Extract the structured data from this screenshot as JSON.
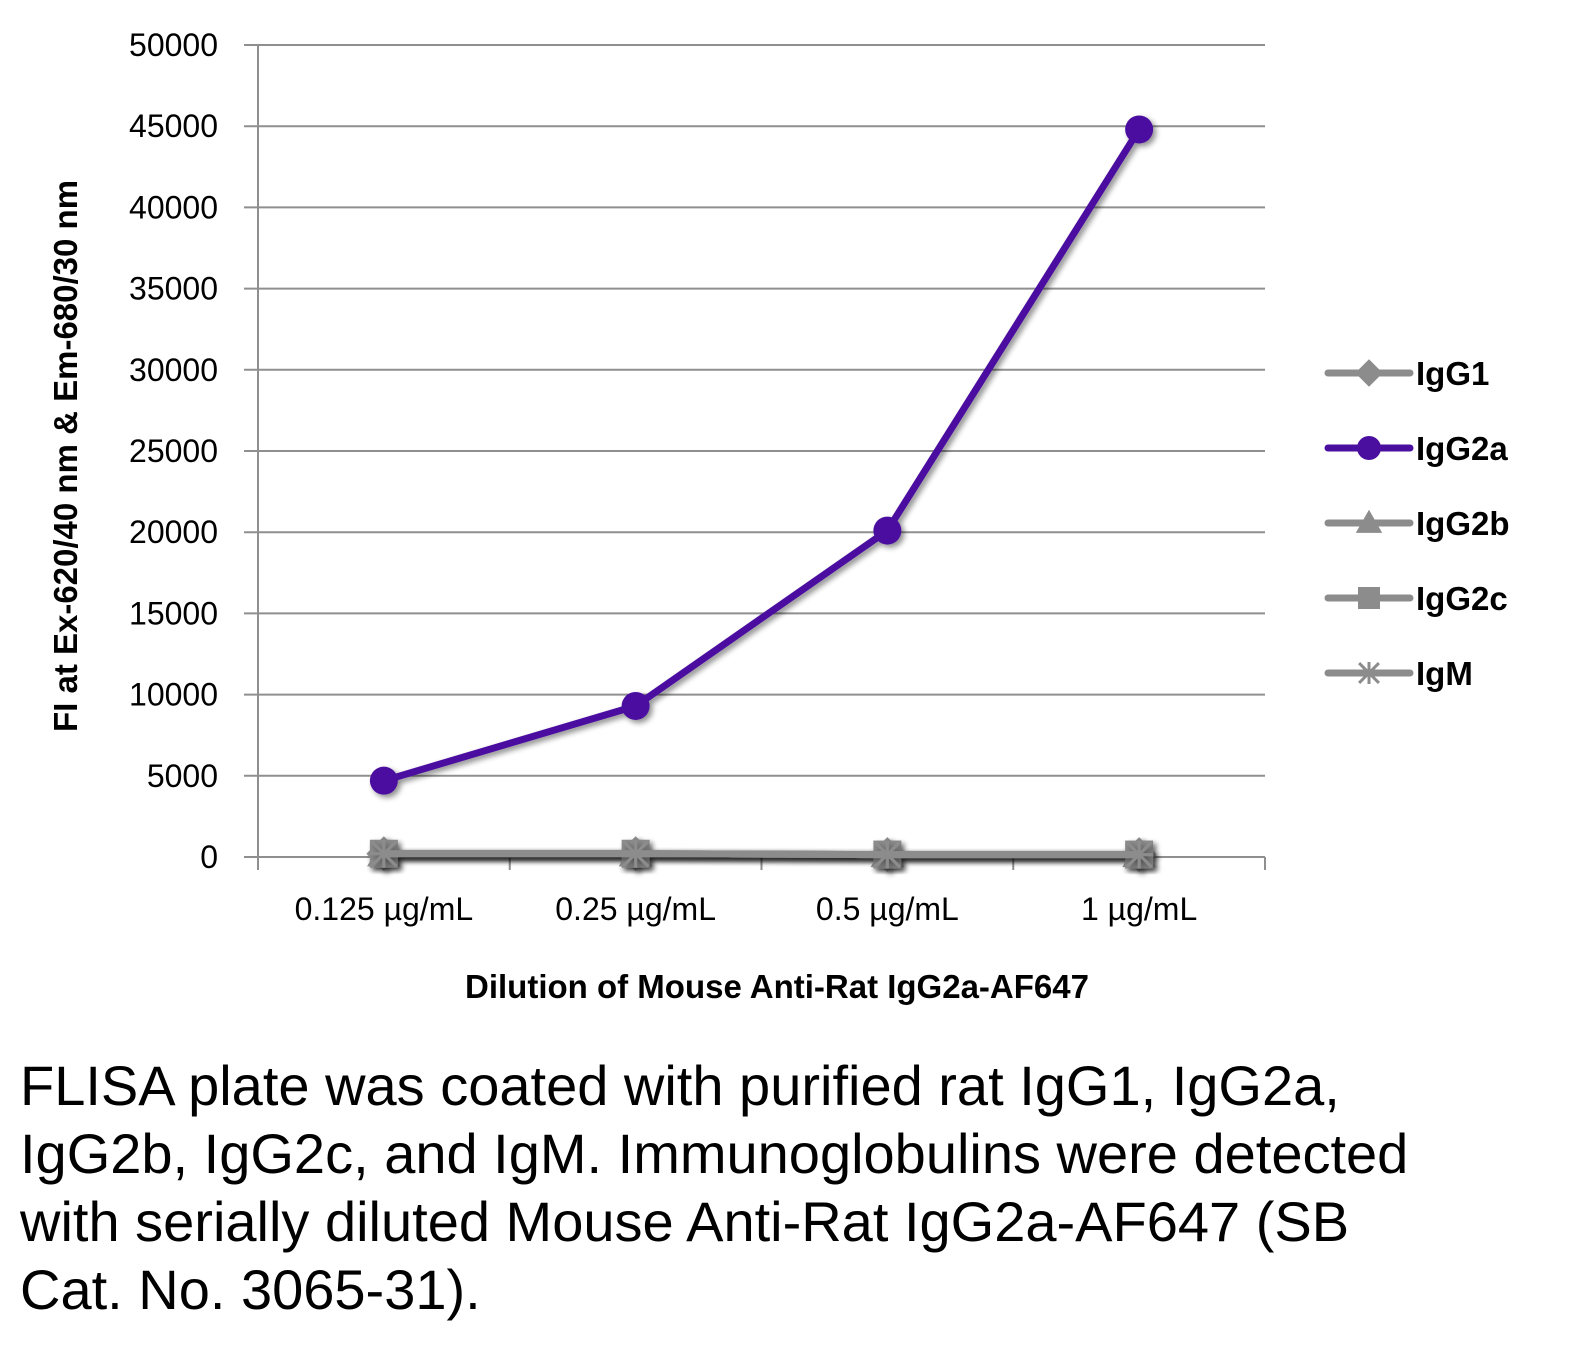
{
  "chart_data": {
    "type": "line",
    "categories": [
      "0.125 µg/mL",
      "0.25 µg/mL",
      "0.5 µg/mL",
      "1 µg/mL"
    ],
    "ylim": [
      0,
      50000
    ],
    "yticks": [
      0,
      5000,
      10000,
      15000,
      20000,
      25000,
      30000,
      35000,
      40000,
      45000,
      50000
    ],
    "ylabel": "FI at Ex-620/40 nm & Em-680/30 nm",
    "xlabel": "Dilution of Mouse Anti-Rat IgG2a-AF647",
    "grid": true,
    "legend_position": "right",
    "series": [
      {
        "name": "IgG1",
        "marker": "diamond",
        "color": "#8c8c8c",
        "values": [
          200,
          200,
          150,
          150
        ]
      },
      {
        "name": "IgG2a",
        "marker": "circle",
        "color": "#4b0fa0",
        "values": [
          4700,
          9300,
          20100,
          44800
        ]
      },
      {
        "name": "IgG2b",
        "marker": "triangle",
        "color": "#8c8c8c",
        "values": [
          200,
          200,
          150,
          150
        ]
      },
      {
        "name": "IgG2c",
        "marker": "square",
        "color": "#8c8c8c",
        "values": [
          200,
          200,
          150,
          150
        ]
      },
      {
        "name": "IgM",
        "marker": "star",
        "color": "#8c8c8c",
        "values": [
          200,
          200,
          150,
          150
        ]
      }
    ]
  },
  "caption": "FLISA plate was coated with purified rat IgG1, IgG2a, IgG2b, IgG2c, and IgM.  Immunoglobulins were detected with serially diluted Mouse Anti-Rat IgG2a-AF647 (SB Cat. No. 3065-31)."
}
